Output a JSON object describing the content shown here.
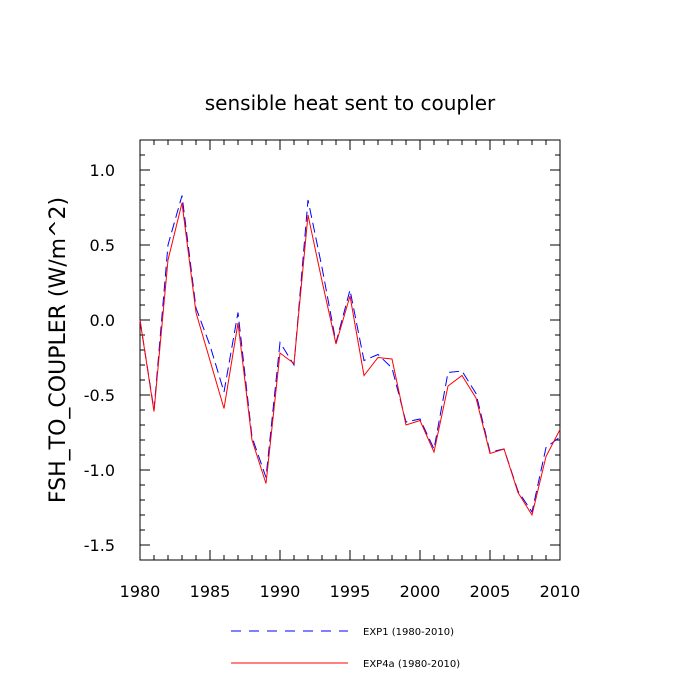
{
  "chart_data": {
    "type": "line",
    "title": "sensible heat sent to coupler",
    "xlabel": "",
    "ylabel": "FSH_TO_COUPLER  (W/m^2)",
    "xlim": [
      1980,
      2010
    ],
    "ylim": [
      -1.6,
      1.2
    ],
    "xticks": [
      1980,
      1985,
      1990,
      1995,
      2000,
      2005,
      2010
    ],
    "xtick_labels": [
      "1980",
      "1985",
      "1990",
      "1995",
      "2000",
      "2005",
      "2010"
    ],
    "yticks": [
      -1.5,
      -1.0,
      -0.5,
      0.0,
      0.5,
      1.0
    ],
    "ytick_labels": [
      "-1.5",
      "-1.0",
      "-0.5",
      "0.0",
      "0.5",
      "1.0"
    ],
    "grid": false,
    "legend_position": "bottom-center",
    "x": [
      1980,
      1981,
      1982,
      1983,
      1984,
      1985,
      1986,
      1987,
      1988,
      1989,
      1990,
      1991,
      1992,
      1993,
      1994,
      1995,
      1996,
      1997,
      1998,
      1999,
      2000,
      2001,
      2002,
      2003,
      2004,
      2005,
      2006,
      2007,
      2008,
      2009,
      2010
    ],
    "series": [
      {
        "name": "EXP1 (1980-2010)",
        "color": "#0000ff",
        "dash": "dashed",
        "values": [
          0.0,
          -0.6,
          0.5,
          0.83,
          0.08,
          -0.17,
          -0.48,
          0.05,
          -0.78,
          -1.05,
          -0.15,
          -0.3,
          0.8,
          0.35,
          -0.15,
          0.2,
          -0.27,
          -0.23,
          -0.32,
          -0.68,
          -0.66,
          -0.86,
          -0.35,
          -0.34,
          -0.49,
          -0.88,
          -0.86,
          -1.14,
          -1.28,
          -0.85,
          -0.78
        ]
      },
      {
        "name": "EXP4a (1980-2010)",
        "color": "#ff0000",
        "dash": "solid",
        "values": [
          0.0,
          -0.61,
          0.4,
          0.78,
          0.05,
          -0.27,
          -0.59,
          -0.02,
          -0.8,
          -1.09,
          -0.22,
          -0.29,
          0.7,
          0.26,
          -0.16,
          0.16,
          -0.37,
          -0.25,
          -0.26,
          -0.7,
          -0.67,
          -0.88,
          -0.44,
          -0.37,
          -0.52,
          -0.89,
          -0.86,
          -1.15,
          -1.3,
          -0.91,
          -0.73
        ]
      }
    ]
  }
}
